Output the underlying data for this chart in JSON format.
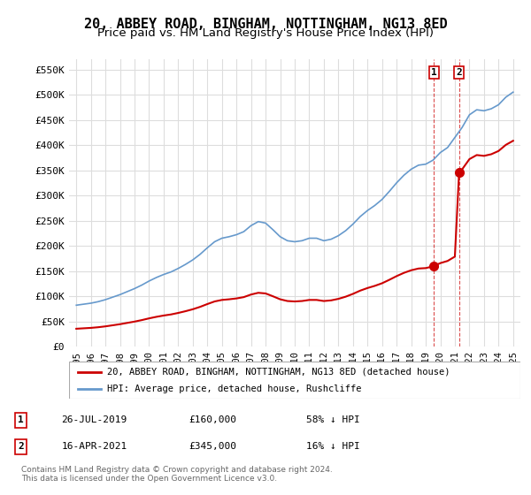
{
  "title": "20, ABBEY ROAD, BINGHAM, NOTTINGHAM, NG13 8ED",
  "subtitle": "Price paid vs. HM Land Registry's House Price Index (HPI)",
  "title_fontsize": 11,
  "subtitle_fontsize": 9.5,
  "ylabel_ticks": [
    "£0",
    "£50K",
    "£100K",
    "£150K",
    "£200K",
    "£250K",
    "£300K",
    "£350K",
    "£400K",
    "£450K",
    "£500K",
    "£550K"
  ],
  "ytick_values": [
    0,
    50000,
    100000,
    150000,
    200000,
    250000,
    300000,
    350000,
    400000,
    450000,
    500000,
    550000
  ],
  "ylim": [
    0,
    570000
  ],
  "xlim_start": 1994.5,
  "xlim_end": 2025.5,
  "xtick_years": [
    1995,
    1996,
    1997,
    1998,
    1999,
    2000,
    2001,
    2002,
    2003,
    2004,
    2005,
    2006,
    2007,
    2008,
    2009,
    2010,
    2011,
    2012,
    2013,
    2014,
    2015,
    2016,
    2017,
    2018,
    2019,
    2020,
    2021,
    2022,
    2023,
    2024,
    2025
  ],
  "hpi_color": "#6699cc",
  "price_color": "#cc0000",
  "background_color": "#ffffff",
  "grid_color": "#dddddd",
  "hpi_x": [
    1995,
    1995.5,
    1996,
    1996.5,
    1997,
    1997.5,
    1998,
    1998.5,
    1999,
    1999.5,
    2000,
    2000.5,
    2001,
    2001.5,
    2002,
    2002.5,
    2003,
    2003.5,
    2004,
    2004.5,
    2005,
    2005.5,
    2006,
    2006.5,
    2007,
    2007.5,
    2008,
    2008.5,
    2009,
    2009.5,
    2010,
    2010.5,
    2011,
    2011.5,
    2012,
    2012.5,
    2013,
    2013.5,
    2014,
    2014.5,
    2015,
    2015.5,
    2016,
    2016.5,
    2017,
    2017.5,
    2018,
    2018.5,
    2019,
    2019.5,
    2020,
    2020.5,
    2021,
    2021.5,
    2022,
    2022.5,
    2023,
    2023.5,
    2024,
    2024.5,
    2025
  ],
  "hpi_y": [
    82000,
    84000,
    86000,
    89000,
    93000,
    98000,
    103000,
    109000,
    115000,
    122000,
    130000,
    137000,
    143000,
    148000,
    155000,
    163000,
    172000,
    183000,
    196000,
    208000,
    215000,
    218000,
    222000,
    228000,
    240000,
    248000,
    245000,
    232000,
    218000,
    210000,
    208000,
    210000,
    215000,
    215000,
    210000,
    213000,
    220000,
    230000,
    243000,
    258000,
    270000,
    280000,
    292000,
    308000,
    325000,
    340000,
    352000,
    360000,
    362000,
    370000,
    385000,
    395000,
    415000,
    435000,
    460000,
    470000,
    468000,
    472000,
    480000,
    495000,
    505000
  ],
  "transaction1_x": 2019.57,
  "transaction1_y": 160000,
  "transaction2_x": 2021.29,
  "transaction2_y": 345000,
  "legend_label1": "20, ABBEY ROAD, BINGHAM, NOTTINGHAM, NG13 8ED (detached house)",
  "legend_label2": "HPI: Average price, detached house, Rushcliffe",
  "table_data": [
    {
      "num": "1",
      "date": "26-JUL-2019",
      "price": "£160,000",
      "pct": "58% ↓ HPI"
    },
    {
      "num": "2",
      "date": "16-APR-2021",
      "price": "£345,000",
      "pct": "16% ↓ HPI"
    }
  ],
  "footer": "Contains HM Land Registry data © Crown copyright and database right 2024.\nThis data is licensed under the Open Government Licence v3.0.",
  "monospace_font": "DejaVu Sans Mono",
  "label_fontsize": 8
}
